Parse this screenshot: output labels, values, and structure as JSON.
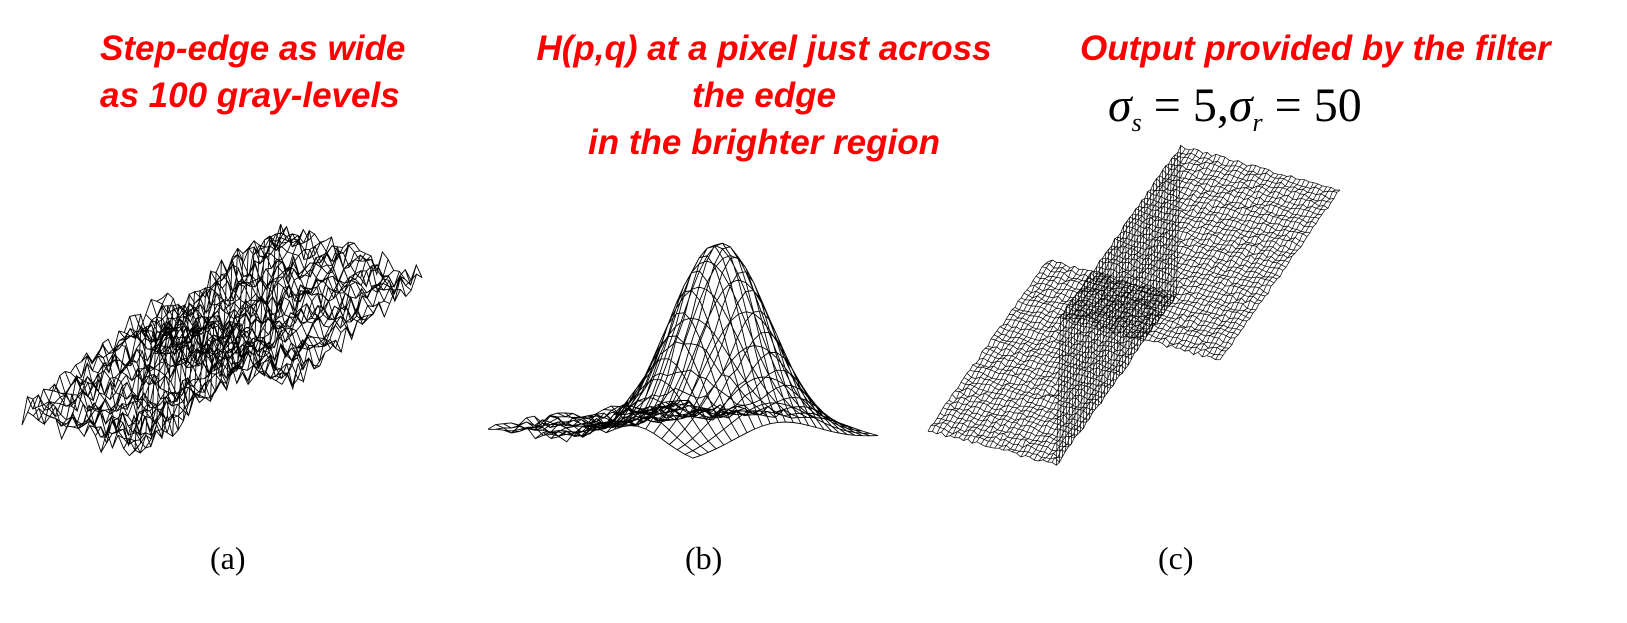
{
  "titles": {
    "a_line1": "Step-edge as wide",
    "a_line2": "as 100 gray-levels",
    "b_line1": "H(p,q) at a pixel just across",
    "b_line2": "the edge",
    "b_line3": "in the brighter region",
    "c": "Output provided by the filter"
  },
  "formula": {
    "sigma": "σ",
    "s_sub": "s",
    "eq": "=",
    "s_val": "5,",
    "r_sub": "r",
    "r_val": "50"
  },
  "captions": {
    "a": "(a)",
    "b": "(b)",
    "c": "(c)"
  },
  "colors": {
    "title": "#ff0000",
    "mesh": "#000000",
    "background": "#ffffff"
  }
}
